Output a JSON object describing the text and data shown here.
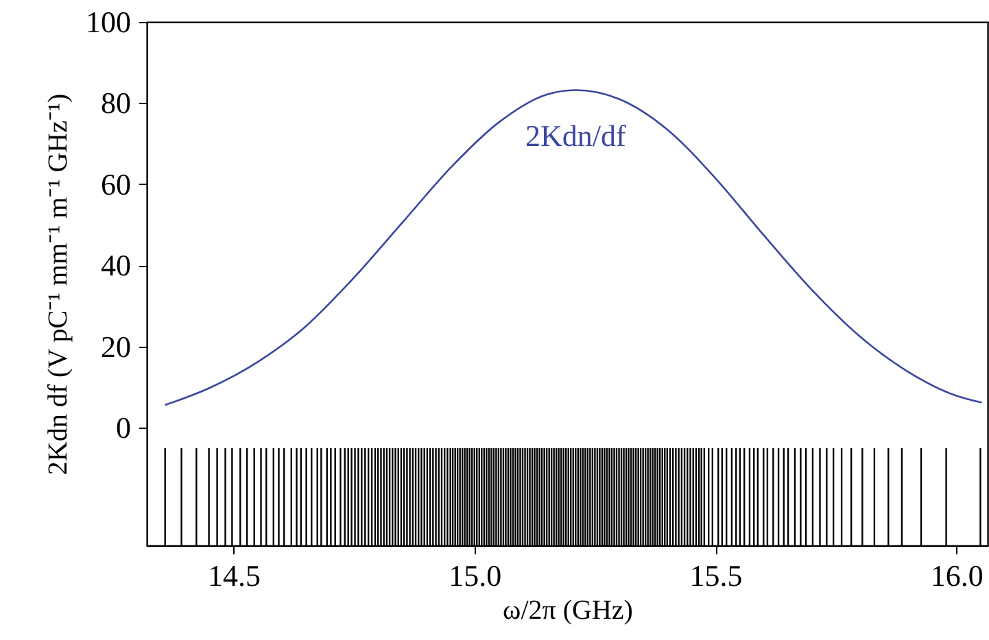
{
  "chart_data": {
    "type": "line",
    "xlabel": "ω/2π (GHz)",
    "ylabel": "2Kdn df (V pC⁻¹ mm⁻¹ m⁻¹ GHz⁻¹)",
    "xlim": [
      14.32,
      16.065
    ],
    "xticks": [
      14.5,
      {
        "value": 15,
        "label": "15.0"
      },
      15.5,
      {
        "value": 16,
        "label": "16.0"
      }
    ],
    "ylim": [
      -29,
      100
    ],
    "yticks": [
      0,
      20,
      40,
      60,
      80,
      100
    ],
    "grid": false,
    "series": [
      {
        "name": "2Kdn/df",
        "color": "#3a47a0",
        "x": [
          14.358,
          14.45,
          14.55,
          14.65,
          14.75,
          14.85,
          14.95,
          15.05,
          15.15,
          15.21,
          15.3,
          15.4,
          15.5,
          15.6,
          15.7,
          15.8,
          15.9,
          16.0,
          16.053
        ],
        "values": [
          5.6,
          9.8,
          16.2,
          25.0,
          37.0,
          50.5,
          64.0,
          75.2,
          82.1,
          83.2,
          81.0,
          73.5,
          61.5,
          47.5,
          34.0,
          22.5,
          13.8,
          7.9,
          6.2
        ]
      },
      {
        "type": "bar",
        "color": "#000000",
        "base": [
          -29,
          -29,
          -29,
          -29,
          -29,
          -29,
          -29,
          -29,
          -29,
          -29,
          -29,
          -29,
          -29,
          -29,
          -29,
          -29,
          -29,
          -29,
          -29,
          -29,
          -29,
          -29,
          -29,
          -29,
          -29,
          -29,
          -29,
          -29,
          -29,
          -29,
          -29,
          -29,
          -29,
          -29,
          -29,
          -29,
          -29,
          -29,
          -29,
          -29,
          -29,
          -29,
          -29,
          -29,
          -29,
          -29,
          -29,
          -29,
          -29,
          -29,
          -29,
          -29,
          -29,
          -29,
          -29,
          -29,
          -29,
          -29,
          -29,
          -29,
          -29,
          -29,
          -29,
          -29,
          -29,
          -29,
          -29,
          -29,
          -29,
          -29,
          -29,
          -29,
          -29,
          -29,
          -29,
          -29,
          -29,
          -29,
          -29,
          -29,
          -29,
          -29,
          -29,
          -29,
          -29,
          -29,
          -29,
          -29,
          -29,
          -29,
          -29,
          -29,
          -29,
          -29,
          -29,
          -29,
          -29,
          -29,
          -29,
          -29,
          -29,
          -29,
          -29,
          -29,
          -29,
          -29,
          -29,
          -29,
          -29,
          -29,
          -29,
          -29,
          -29,
          -29,
          -29,
          -29,
          -29,
          -29,
          -29,
          -29,
          -29,
          -29,
          -29,
          -29,
          -29,
          -29,
          -29,
          -29,
          -29,
          -29,
          -29,
          -29,
          -29,
          -29,
          -29,
          -29,
          -29,
          -29,
          -29,
          -29,
          -29,
          -29,
          -29,
          -29,
          -29,
          -29,
          -29,
          -29,
          -29,
          -29,
          -29,
          -29,
          -29,
          -29,
          -29,
          -29,
          -29,
          -29,
          -29,
          -29,
          -29,
          -29,
          -29,
          -29,
          -29,
          -29,
          -29,
          -29,
          -29,
          -29,
          -29,
          -29,
          -29,
          -29,
          -29,
          -29,
          -29,
          -29,
          -29,
          -29,
          -29,
          -29,
          -29,
          -29,
          -29,
          -29,
          -29,
          -29,
          -29,
          -29,
          -29,
          -29,
          -29,
          -29,
          -29,
          -29,
          -29,
          -29,
          -29
        ],
        "values": [
          24,
          24,
          24,
          24,
          24,
          24,
          24,
          24,
          24,
          24,
          24,
          24,
          24,
          24,
          24,
          24,
          24,
          24,
          24,
          24,
          24,
          24,
          24,
          24,
          24,
          24,
          24,
          24,
          24,
          24,
          24,
          24,
          24,
          24,
          24,
          24,
          24,
          24,
          24,
          24,
          24,
          24,
          24,
          24,
          24,
          24,
          24,
          24,
          24,
          24,
          24,
          24,
          24,
          24,
          24,
          24,
          24,
          24,
          24,
          24,
          24,
          24,
          24,
          24,
          24,
          24,
          24,
          24,
          24,
          24,
          24,
          24,
          24,
          24,
          24,
          24,
          24,
          24,
          24,
          24,
          24,
          24,
          24,
          24,
          24,
          24,
          24,
          24,
          24,
          24,
          24,
          24,
          24,
          24,
          24,
          24,
          24,
          24,
          24,
          24,
          24,
          24,
          24,
          24,
          24,
          24,
          24,
          24,
          24,
          24,
          24,
          24,
          24,
          24,
          24,
          24,
          24,
          24,
          24,
          24,
          24,
          24,
          24,
          24,
          24,
          24,
          24,
          24,
          24,
          24,
          24,
          24,
          24,
          24,
          24,
          24,
          24,
          24,
          24,
          24,
          24,
          24,
          24,
          24,
          24,
          24,
          24,
          24,
          24,
          24,
          24,
          24,
          24,
          24,
          24,
          24,
          24,
          24,
          24,
          24,
          24,
          24,
          24,
          24,
          24,
          24,
          24,
          24,
          24,
          24,
          24,
          24,
          24,
          24,
          24,
          24,
          24,
          24,
          24,
          24,
          24,
          24,
          24,
          24,
          24,
          24,
          24,
          24,
          24,
          24,
          24,
          24,
          24,
          24,
          24,
          24,
          24,
          24,
          24
        ],
        "x": [
          14.358,
          14.392,
          14.423,
          14.449,
          14.466,
          14.483,
          14.497,
          14.514,
          14.528,
          14.543,
          14.557,
          14.568,
          14.583,
          14.594,
          14.605,
          14.62,
          14.631,
          14.64,
          14.651,
          14.662,
          14.674,
          14.682,
          14.694,
          14.702,
          14.711,
          14.722,
          14.731,
          14.738,
          14.745,
          14.752,
          14.759,
          14.766,
          14.773,
          14.78,
          14.787,
          14.794,
          14.8,
          14.806,
          14.812,
          14.818,
          14.824,
          14.83,
          14.836,
          14.842,
          14.848,
          14.854,
          14.86,
          14.866,
          14.872,
          14.878,
          14.884,
          14.89,
          14.896,
          14.902,
          14.908,
          14.914,
          14.92,
          14.926,
          14.932,
          14.938,
          14.944,
          14.95,
          14.955,
          14.96,
          14.965,
          14.97,
          14.975,
          14.98,
          14.985,
          14.99,
          14.995,
          15.0,
          15.005,
          15.01,
          15.015,
          15.02,
          15.025,
          15.03,
          15.035,
          15.04,
          15.045,
          15.05,
          15.055,
          15.06,
          15.065,
          15.07,
          15.075,
          15.08,
          15.085,
          15.09,
          15.095,
          15.1,
          15.105,
          15.11,
          15.115,
          15.12,
          15.125,
          15.13,
          15.135,
          15.14,
          15.145,
          15.15,
          15.155,
          15.16,
          15.165,
          15.17,
          15.175,
          15.18,
          15.185,
          15.19,
          15.195,
          15.2,
          15.205,
          15.21,
          15.215,
          15.22,
          15.225,
          15.23,
          15.235,
          15.24,
          15.245,
          15.25,
          15.255,
          15.26,
          15.265,
          15.27,
          15.275,
          15.28,
          15.285,
          15.29,
          15.295,
          15.3,
          15.305,
          15.31,
          15.315,
          15.32,
          15.325,
          15.33,
          15.335,
          15.34,
          15.345,
          15.35,
          15.355,
          15.36,
          15.365,
          15.37,
          15.375,
          15.38,
          15.385,
          15.39,
          15.395,
          15.4,
          15.406,
          15.412,
          15.418,
          15.424,
          15.43,
          15.436,
          15.442,
          15.448,
          15.454,
          15.46,
          15.466,
          15.471,
          15.477,
          15.486,
          15.494,
          15.506,
          15.514,
          15.523,
          15.534,
          15.543,
          15.551,
          15.56,
          15.571,
          15.58,
          15.588,
          15.6,
          15.608,
          15.62,
          15.631,
          15.642,
          15.651,
          15.665,
          15.677,
          15.688,
          15.702,
          15.717,
          15.731,
          15.745,
          15.762,
          15.782,
          15.805,
          15.83,
          15.859,
          15.887,
          15.927,
          15.979,
          16.05
        ]
      }
    ]
  }
}
